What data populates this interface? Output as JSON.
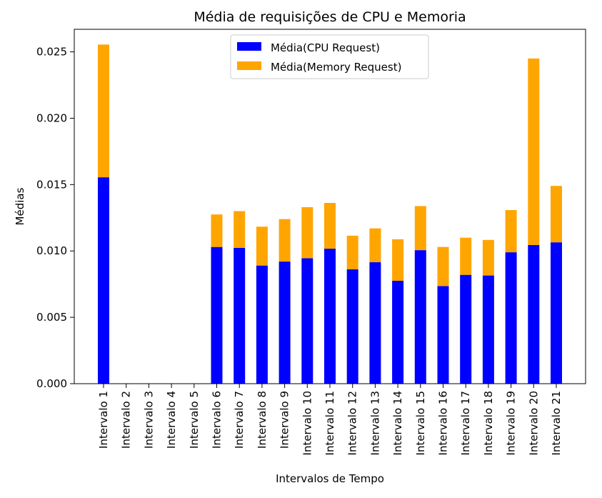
{
  "chart_data": {
    "type": "bar",
    "stacked": true,
    "title": "Média de requisições de CPU e Memoria",
    "xlabel": "Intervalos de Tempo",
    "ylabel": "Médias",
    "ylim": [
      0,
      0.0267
    ],
    "yticks": [
      "0.000",
      "0.005",
      "0.010",
      "0.015",
      "0.020",
      "0.025"
    ],
    "ytick_values": [
      0,
      0.005,
      0.01,
      0.015,
      0.02,
      0.025
    ],
    "legend_position": "top-center",
    "grid": false,
    "categories": [
      "Intervalo 1",
      "Intervalo 2",
      "Intervalo 3",
      "Intervalo 4",
      "Intervalo 5",
      "Intervalo 6",
      "Intervalo 7",
      "Intervalo 8",
      "Intervalo 9",
      "Intervalo 10",
      "Intervalo 11",
      "Intervalo 12",
      "Intervalo 13",
      "Intervalo 14",
      "Intervalo 15",
      "Intervalo 16",
      "Intervalo 17",
      "Intervalo 18",
      "Intervalo 19",
      "Intervalo 20",
      "Intervalo 21"
    ],
    "series": [
      {
        "name": "Média(CPU Request)",
        "color": "#0000ff",
        "values": [
          0.01555,
          0,
          0,
          0,
          0,
          0.0103,
          0.01023,
          0.0089,
          0.0092,
          0.00945,
          0.01017,
          0.00862,
          0.00915,
          0.00775,
          0.01006,
          0.00735,
          0.0082,
          0.00815,
          0.0099,
          0.01045,
          0.01065
        ]
      },
      {
        "name": "Média(Memory Request)",
        "color": "#ffa500",
        "values": [
          0.01,
          0,
          0,
          0,
          0,
          0.00245,
          0.00277,
          0.00293,
          0.0032,
          0.00385,
          0.00345,
          0.00253,
          0.00255,
          0.00313,
          0.00332,
          0.00295,
          0.0028,
          0.00268,
          0.00318,
          0.01405,
          0.00425
        ]
      }
    ]
  }
}
